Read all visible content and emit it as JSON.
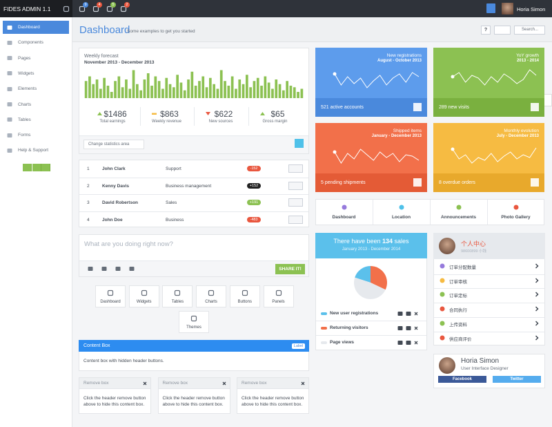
{
  "topbar": {
    "brand": "FIDES ADMIN 1.1",
    "user": "Horia Simon",
    "badges": [
      {
        "text": "9",
        "color": "#4a89dc"
      },
      {
        "text": "4",
        "color": "#e9573f"
      },
      {
        "text": "5",
        "color": "#8cc152"
      },
      {
        "text": "2",
        "color": "#e9573f"
      }
    ]
  },
  "sidebar": {
    "active": 0,
    "items": [
      "Dashboard",
      "Components",
      "Pages",
      "Widgets",
      "Elements",
      "Charts",
      "Tables",
      "Forms",
      "Help & Support"
    ]
  },
  "header": {
    "title": "Dashboard",
    "subtitle": "Some examples to get you started",
    "help": "?",
    "search_placeholder": "Search..."
  },
  "forecast": {
    "title": "Weekly forecast",
    "period": "November 2013 - December 2013",
    "bars": {
      "color": "#8cc152",
      "ylim": [
        0,
        100
      ],
      "values": [
        55,
        70,
        45,
        60,
        30,
        65,
        40,
        20,
        55,
        70,
        35,
        60,
        30,
        90,
        45,
        25,
        60,
        80,
        40,
        70,
        55,
        30,
        65,
        45,
        35,
        75,
        50,
        25,
        60,
        85,
        40,
        55,
        70,
        35,
        65,
        45,
        30,
        90,
        55,
        40,
        70,
        30,
        60,
        45,
        75,
        35,
        55,
        65,
        40,
        70,
        50,
        30,
        60,
        45,
        25,
        55,
        40,
        35,
        20,
        30
      ]
    },
    "stats": [
      {
        "value": "$1486",
        "label": "Total earnings",
        "trend": "up"
      },
      {
        "value": "$863",
        "label": "Weekly revenue",
        "trend": "flat"
      },
      {
        "value": "$622",
        "label": "New sources",
        "trend": "down"
      },
      {
        "value": "$65",
        "label": "Gross margin",
        "trend": "up"
      }
    ],
    "select": "Change statistics area"
  },
  "table": {
    "rows": [
      {
        "index": "1",
        "name": "John Clark",
        "department": "Support",
        "badge": "-152",
        "badge_color": "#e9573f"
      },
      {
        "index": "2",
        "name": "Kenny Davis",
        "department": "Business management",
        "badge": "+152",
        "badge_color": "#222222"
      },
      {
        "index": "3",
        "name": "David Robertson",
        "department": "Sales",
        "badge": "+191",
        "badge_color": "#8cc152"
      },
      {
        "index": "4",
        "name": "John Doe",
        "department": "Business",
        "badge": "-483",
        "badge_color": "#e9573f"
      }
    ]
  },
  "status": {
    "placeholder": "What are you doing right now?",
    "button": "SHARE IT!"
  },
  "shortcuts": [
    "Dashboard",
    "Widgets",
    "Tables",
    "Charts",
    "Buttons",
    "Panels",
    "Themes"
  ],
  "content_box": {
    "title": "Content Box",
    "label": "Label",
    "text": "Content box with hidden header buttons."
  },
  "remove_boxes": [
    {
      "title": "Remove box",
      "text": "Click the header remove button above to hide this content box."
    },
    {
      "title": "Remove box",
      "text": "Click the header remove button above to hide this content box."
    },
    {
      "title": "Remove box",
      "text": "Click the header remove button above to hide this content box."
    }
  ],
  "tiles": [
    {
      "title": "New registrations",
      "period": "August - October 2013",
      "footer": "521 active accounts",
      "color": "#5d9cec",
      "footer_color": "#4a89dc",
      "ylim": [
        0,
        100
      ],
      "values": [
        70,
        30,
        60,
        35,
        55,
        20,
        45,
        65,
        30,
        55,
        70,
        40,
        75,
        60
      ]
    },
    {
      "title": "YoY growth",
      "period": "2013 - 2014",
      "footer": "289 new visits",
      "color": "#8cc152",
      "footer_color": "#7ab03f",
      "ylim": [
        0,
        100
      ],
      "values": [
        60,
        75,
        40,
        65,
        55,
        30,
        60,
        40,
        70,
        55,
        35,
        50,
        85,
        65
      ]
    },
    {
      "title": "Shipped items",
      "period": "January - December 2013",
      "footer": "5 pending shipments",
      "color": "#f2704a",
      "footer_color": "#e45b36",
      "ylim": [
        0,
        100
      ],
      "values": [
        60,
        20,
        55,
        35,
        70,
        50,
        30,
        60,
        40,
        55,
        25,
        50,
        45,
        30
      ]
    },
    {
      "title": "Monthly evolution",
      "period": "July - December 2013",
      "footer": "8 overdue orders",
      "color": "#f6bb42",
      "footer_color": "#e8a92c",
      "ylim": [
        0,
        100
      ],
      "values": [
        70,
        35,
        50,
        20,
        40,
        30,
        55,
        25,
        45,
        60,
        35,
        50,
        40,
        75
      ]
    }
  ],
  "nav": [
    {
      "label": "Dashboard",
      "color": "#967adc"
    },
    {
      "label": "Location",
      "color": "#4fc1e9"
    },
    {
      "label": "Announcements",
      "color": "#8cc152"
    },
    {
      "label": "Photo Gallery",
      "color": "#e9573f"
    }
  ],
  "sales": {
    "title_prefix": "There have been",
    "count": "134",
    "title_suffix": "sales",
    "period": "January 2013 - December 2014",
    "pie": [
      {
        "name": "New user registrations",
        "color": "#5bc0eb",
        "value": 20
      },
      {
        "name": "Returning visitors",
        "color": "#f2704a",
        "value": 32
      },
      {
        "name": "Page views",
        "color": "#e6e9ed",
        "value": 48
      }
    ]
  },
  "profile_menu": {
    "name": "个人中心",
    "id": "98600899 小钱",
    "items": [
      {
        "label": "订单分配数量",
        "color": "#967adc"
      },
      {
        "label": "订单审核",
        "color": "#f6bb42"
      },
      {
        "label": "订单定标",
        "color": "#8cc152"
      },
      {
        "label": "合同执行",
        "color": "#e9573f"
      },
      {
        "label": "上传资料",
        "color": "#8cc152"
      },
      {
        "label": "供应商评价",
        "color": "#e9573f"
      }
    ]
  },
  "profile_card": {
    "name": "Horia Simon",
    "role": "User Interface Designer",
    "buttons": [
      {
        "label": "Facebook",
        "color": "#3b5998"
      },
      {
        "label": "Twitter",
        "color": "#55acee"
      }
    ]
  }
}
